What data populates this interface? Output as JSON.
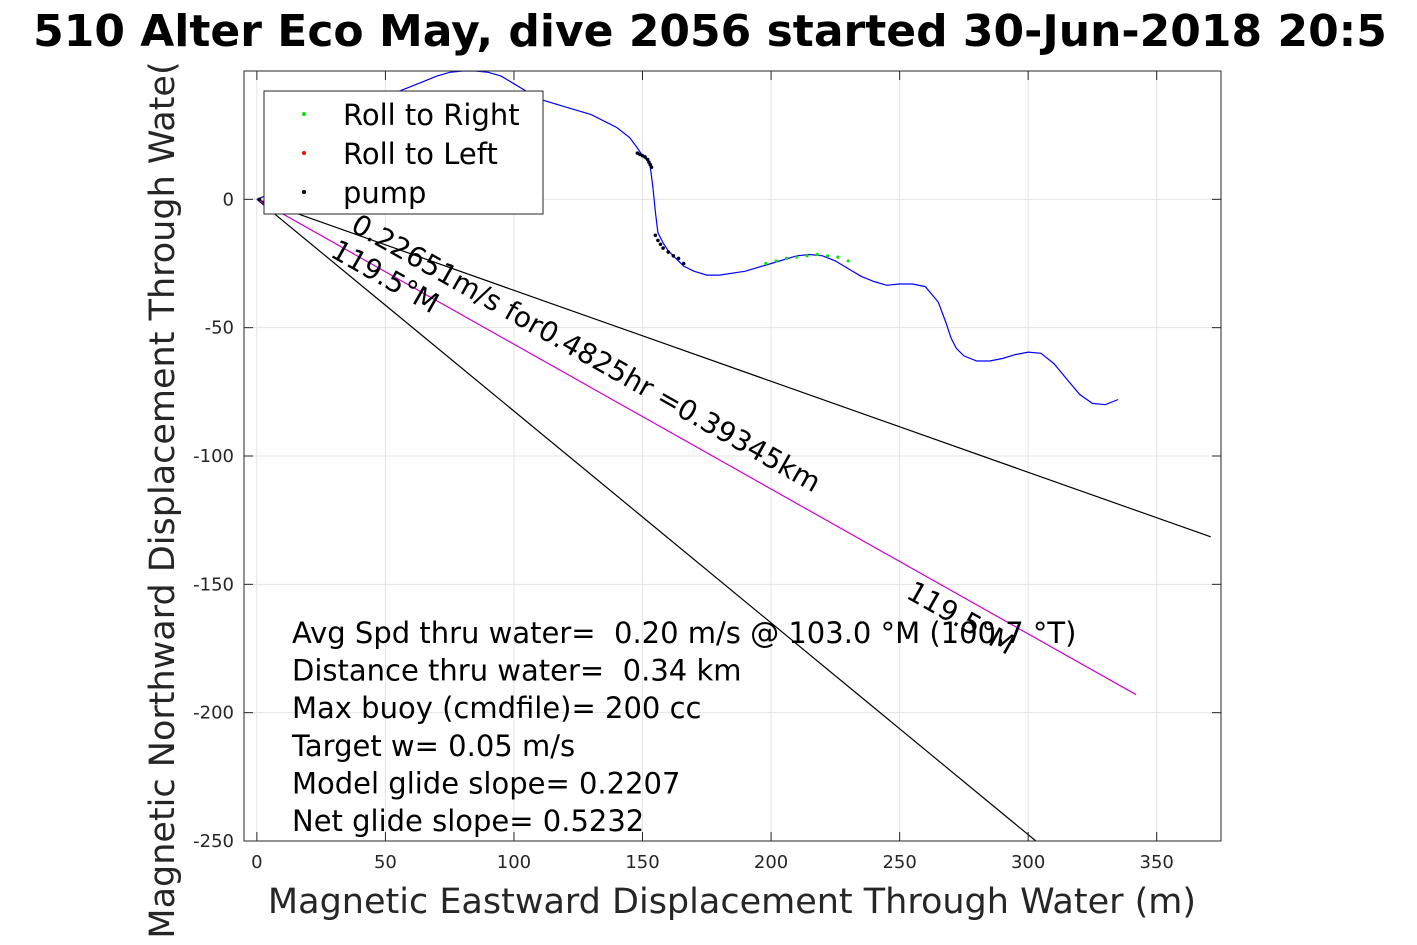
{
  "chart_data": {
    "type": "line",
    "title": "510 Alter Eco May, dive 2056 started 30-Jun-2018 20:5",
    "xlabel": "Magnetic Eastward Displacement Through Water (m)",
    "ylabel": "Magnetic Northward Displacement Through Wate(",
    "xlim": [
      -5,
      375
    ],
    "ylim": [
      -250,
      50
    ],
    "xticks": [
      0,
      50,
      100,
      150,
      200,
      250,
      300,
      350
    ],
    "yticks": [
      0,
      -50,
      -100,
      -150,
      -200,
      -250
    ],
    "grid": true,
    "legend": {
      "placement": "top-left",
      "entries": [
        {
          "label": "Roll to Right",
          "color": "#00e600"
        },
        {
          "label": "Roll to Left",
          "color": "#ff0000"
        },
        {
          "label": "pump",
          "color": "#000000"
        }
      ]
    },
    "track": {
      "color": "#0000ff",
      "x": [
        0,
        5,
        10,
        15,
        20,
        30,
        40,
        50,
        60,
        65,
        70,
        75,
        80,
        85,
        90,
        95,
        100,
        105,
        110,
        120,
        130,
        140,
        145,
        148,
        150,
        152,
        153,
        154,
        155,
        156,
        158,
        160,
        163,
        166,
        170,
        175,
        180,
        190,
        200,
        210,
        215,
        220,
        225,
        230,
        235,
        240,
        245,
        250,
        255,
        260,
        265,
        268,
        270,
        272,
        275,
        280,
        285,
        290,
        295,
        300,
        305,
        310,
        315,
        320,
        325,
        330,
        335
      ],
      "y": [
        0,
        2,
        8,
        15,
        22,
        30,
        35,
        40,
        44,
        46,
        48,
        49.5,
        50,
        50,
        49.5,
        48,
        45,
        42,
        39,
        36,
        33,
        28,
        24,
        20,
        17,
        15,
        13,
        5,
        -5,
        -13,
        -17,
        -20,
        -23,
        -26,
        -28,
        -29.5,
        -29.5,
        -28,
        -25,
        -22,
        -21.5,
        -22,
        -24,
        -27,
        -30,
        -32,
        -33.5,
        -33,
        -33,
        -34,
        -40,
        -48,
        -54,
        -58,
        -61,
        -63,
        -63,
        -62,
        -60.5,
        -59.5,
        -60,
        -64,
        -70,
        -76,
        -79.5,
        -80,
        -78
      ]
    },
    "pump_points": {
      "color": "#000022",
      "x": [
        1,
        3,
        148,
        149,
        150,
        151,
        152,
        152.5,
        153,
        153.5,
        155,
        156,
        157,
        158,
        160,
        162,
        164,
        166
      ],
      "y": [
        0,
        -1,
        18,
        17.5,
        17,
        16.5,
        15.5,
        14.5,
        13.5,
        12.5,
        -14,
        -16,
        -17.5,
        -19,
        -20.5,
        -22,
        -23,
        -25
      ]
    },
    "roll_right_points": {
      "color": "#00e600",
      "x": [
        198,
        202,
        206,
        210,
        214,
        218,
        222,
        226,
        230
      ],
      "y": [
        -25,
        -24,
        -23,
        -22.5,
        -22,
        -21.5,
        -22,
        -22.5,
        -24
      ]
    },
    "lines": [
      {
        "color": "#000000",
        "x": [
          0,
          371
        ],
        "y": [
          0,
          -131.5
        ]
      },
      {
        "color": "#000000",
        "x": [
          0,
          303
        ],
        "y": [
          0,
          -250
        ]
      },
      {
        "color": "#cc00cc",
        "x": [
          0,
          342
        ],
        "y": [
          0,
          -193
        ]
      }
    ],
    "annotations": [
      {
        "text": "0.22651m/s for0.4825hr =0.39345km",
        "x": 36,
        "y": -12,
        "rotate": 29.5
      },
      {
        "text": "119.5°M",
        "x": 28,
        "y": -22,
        "rotate": 29.5
      },
      {
        "text": "119.5°M",
        "x": 252,
        "y": -155,
        "rotate": 29.5
      }
    ],
    "stats": [
      "Avg Spd thru water=  0.20 m/s @ 103.0 °M (100.7 °T)",
      "Distance thru water=  0.34 km",
      "Max buoy (cmdfile)= 200 cc",
      "Target w= 0.05 m/s",
      "Model glide slope= 0.2207",
      "Net glide slope= 0.5232"
    ]
  }
}
